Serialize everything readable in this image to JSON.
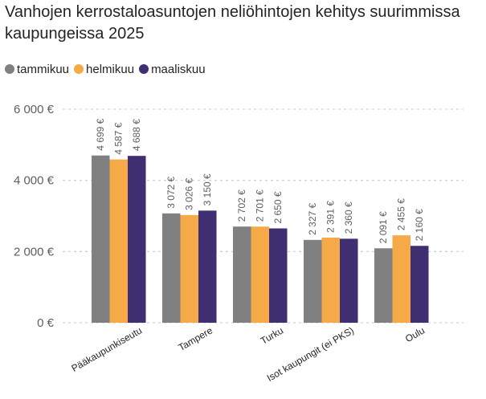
{
  "title": "Vanhojen kerrostaloasuntojen neliöhintojen kehitys suurimmissa kaupungeissa 2025",
  "chart_data": {
    "type": "bar",
    "title": "Vanhojen kerrostaloasuntojen neliöhintojen kehitys suurimmissa kaupungeissa 2025",
    "categories": [
      "Pääkaupunkiseutu",
      "Tampere",
      "Turku",
      "Isot kaupungit (ei PKS)",
      "Oulu"
    ],
    "series": [
      {
        "name": "tammikuu",
        "color": "#808080",
        "values": [
          4699,
          3072,
          2702,
          2327,
          2091
        ],
        "labels": [
          "4 699 €",
          "3 072 €",
          "2 702 €",
          "2 327 €",
          "2 091 €"
        ]
      },
      {
        "name": "helmikuu",
        "color": "#F5A947",
        "values": [
          4587,
          3026,
          2701,
          2391,
          2455
        ],
        "labels": [
          "4 587 €",
          "3 026 €",
          "2 701 €",
          "2 391 €",
          "2 455 €"
        ]
      },
      {
        "name": "maaliskuu",
        "color": "#3F2E72",
        "values": [
          4688,
          3150,
          2650,
          2360,
          2160
        ],
        "labels": [
          "4 688 €",
          "3 150 €",
          "2 650 €",
          "2 360 €",
          "2 160 €"
        ]
      }
    ],
    "yticks": [
      {
        "value": 0,
        "label": "0 €"
      },
      {
        "value": 2000,
        "label": "2 000 €"
      },
      {
        "value": 4000,
        "label": "4 000 €"
      },
      {
        "value": 6000,
        "label": "6 000 €"
      }
    ],
    "ylim": [
      0,
      6000
    ],
    "grid": true,
    "legend_position": "top-left"
  }
}
